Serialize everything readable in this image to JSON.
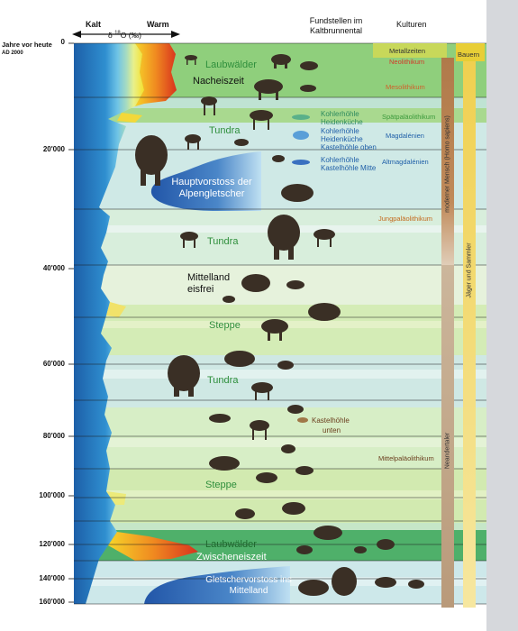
{
  "header": {
    "kalt": "Kalt",
    "warm": "Warm",
    "delta_prefix": "δ ",
    "delta_sup": "18",
    "delta_suffix": "O (‰)",
    "years": "Jahre vor heute",
    "ad": "AD 2000",
    "fundstellen": "Fundstellen im Kaltbrunnental",
    "kulturen": "Kulturen"
  },
  "y_axis": [
    {
      "label": "0",
      "value": 0
    },
    {
      "label": "20'000",
      "value": 20000
    },
    {
      "label": "40'000",
      "value": 40000
    },
    {
      "label": "60'000",
      "value": 60000
    },
    {
      "label": "80'000",
      "value": 80000
    },
    {
      "label": "100'000",
      "value": 100000
    },
    {
      "label": "120'000",
      "value": 120000
    },
    {
      "label": "140'000",
      "value": 140000
    },
    {
      "label": "160'000",
      "value": 160000
    }
  ],
  "zones": {
    "laubwaelder_top": "Laubwälder",
    "nacheiszeit": "Nacheiszeit",
    "tundra1": "Tundra",
    "hauptvorstoss": "Hauptvorstoss der Alpengletscher",
    "tundra2": "Tundra",
    "mittelland": "Mittelland eisfrei",
    "steppe1": "Steppe",
    "tundra3": "Tundra",
    "steppe2": "Steppe",
    "laubwaelder_bottom": "Laubwälder",
    "zwischeneiszeit": "Zwischeneiszeit",
    "gletschervorstoss": "Gletschervorstoss ins Mittelland"
  },
  "sites": {
    "s1a": "Kohlerhöhle",
    "s1b": "Heidenküche",
    "s2a": "Kohlerhöhle",
    "s2b": "Heidenküche",
    "s2c": "Kastelhöhle oben",
    "s3a": "Kohlerhöhle",
    "s3b": "Kastelhöhle Mitte",
    "s4a": "Kastelhöhle",
    "s4b": "unten"
  },
  "cultures": {
    "metallzeiten": "Metallzeiten",
    "neolithikum": "Neolithikum",
    "mesolithikum": "Mesolithikum",
    "spaet": "Spätpaläolithikum",
    "magdalenien": "Magdalénien",
    "altmagdalenien": "Altmagdalénien",
    "jungpal": "Jungpaläolithikum",
    "mittelpal": "Mittelpaläolithikum",
    "modern": "moderner Mensch (Homo sapiens)",
    "neandertaler": "Neandertaler",
    "bauern": "Bauern",
    "jaeger": "Jäger und Sammler"
  },
  "colors": {
    "cold_blue": "#1d6fb8",
    "warm_red": "#d8321e",
    "band_green": "#7cc47a",
    "band_cool": "#c8e6e4",
    "text_green": "#3c9a3c",
    "text_orange": "#c46a1e",
    "text_blue": "#1f5fa8"
  }
}
